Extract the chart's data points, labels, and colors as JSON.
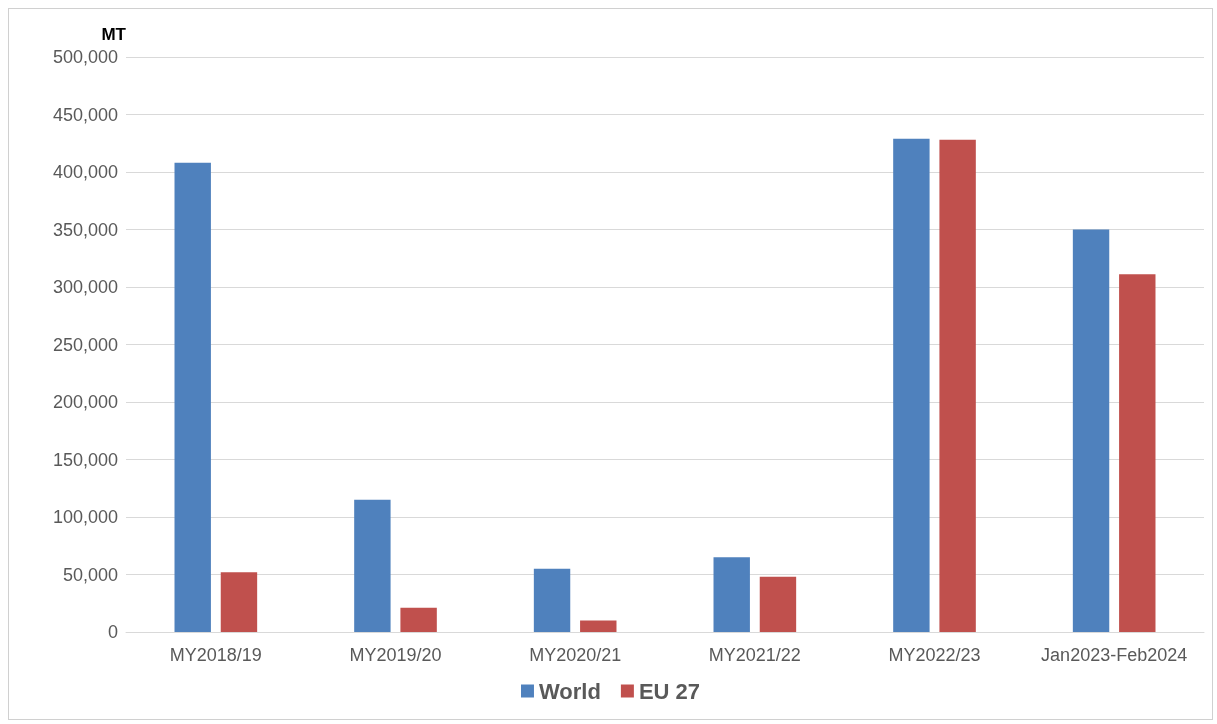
{
  "chart_data": {
    "type": "bar",
    "ylabel": "MT",
    "categories": [
      "MY2018/19",
      "MY2019/20",
      "MY2020/21",
      "MY2021/22",
      "MY2022/23",
      "Jan2023-Feb2024"
    ],
    "series": [
      {
        "name": "World",
        "color": "#4f81bd",
        "values": [
          408000,
          115000,
          55000,
          65000,
          429000,
          350000
        ]
      },
      {
        "name": "EU 27",
        "color": "#c0504d",
        "values": [
          52000,
          21000,
          10000,
          48000,
          428000,
          311000
        ]
      }
    ],
    "ylim": [
      0,
      500000
    ],
    "yticks": [
      0,
      {
        "value": 50000,
        "label": "50,000"
      },
      {
        "value": 100000,
        "label": "100,000"
      },
      {
        "value": 150000,
        "label": "150,000"
      },
      {
        "value": 200000,
        "label": "200,000"
      },
      {
        "value": 250000,
        "label": "250,000"
      },
      {
        "value": 300000,
        "label": "300,000"
      },
      {
        "value": 350000,
        "label": "350,000"
      },
      {
        "value": 400000,
        "label": "400,000"
      },
      {
        "value": 450000,
        "label": "450,000"
      },
      {
        "value": 500000,
        "label": "500,000"
      }
    ],
    "grid": "y",
    "legend": "bottom"
  }
}
